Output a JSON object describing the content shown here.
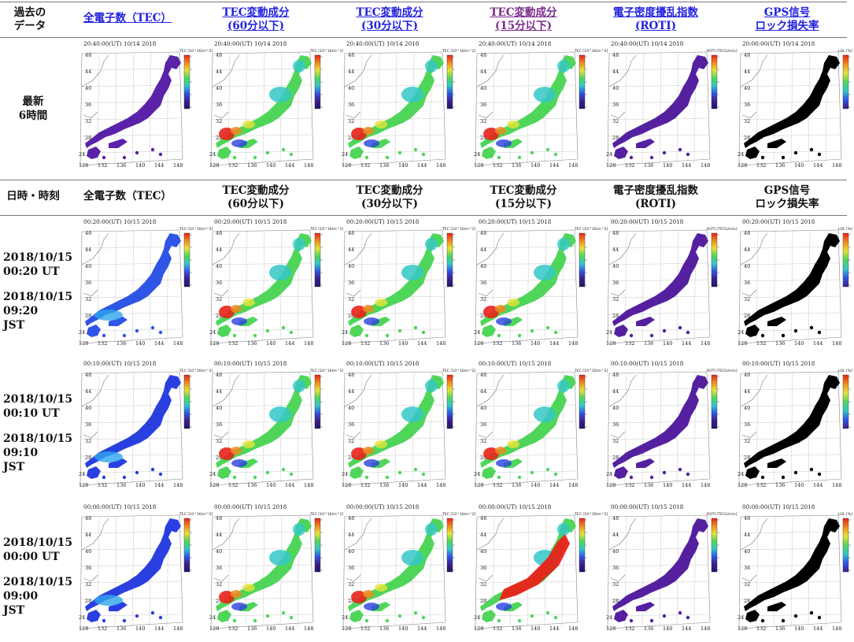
{
  "header_top": {
    "corner_line1": "過去の",
    "corner_line2": "データ",
    "columns": [
      {
        "line1": "全電子数（TEC）",
        "line2": "",
        "color": "#2222dd"
      },
      {
        "line1": "TEC変動成分",
        "line2": "(60分以下)",
        "color": "#2222dd"
      },
      {
        "line1": "TEC変動成分",
        "line2": "(30分以下)",
        "color": "#2222dd"
      },
      {
        "line1": "TEC変動成分",
        "line2": "(15分以下)",
        "color": "#7a2a8a"
      },
      {
        "line1": "電子密度擾乱指数",
        "line2": "(ROTI)",
        "color": "#2222dd"
      },
      {
        "line1": "GPS信号",
        "line2": "ロック損失率",
        "color": "#2222dd"
      }
    ]
  },
  "latest_row": {
    "label_line1": "最新",
    "label_line2": "6時間",
    "map_titles": [
      "20:40:00(UT)  10/14 2018",
      "20:40:00(UT)  10/14 2018",
      "20:40:00(UT)  10/14 2018",
      "20:40:00(UT)  10/14 2018",
      "20:40:00(UT)  10/14 2018",
      "20:00:00(UT)  10/14 2018"
    ]
  },
  "header_second": {
    "corner": "日時・時刻",
    "columns": [
      {
        "line1": "全電子数（TEC）",
        "line2": ""
      },
      {
        "line1": "TEC変動成分",
        "line2": "(60分以下)"
      },
      {
        "line1": "TEC変動成分",
        "line2": "(30分以下)"
      },
      {
        "line1": "TEC変動成分",
        "line2": "(15分以下)"
      },
      {
        "line1": "電子密度擾乱指数",
        "line2": "(ROTI)"
      },
      {
        "line1": "GPS信号",
        "line2": "ロック損失率"
      }
    ]
  },
  "rows": [
    {
      "date_ut": "2018/10/15",
      "time_ut": "00:20 UT",
      "date_jst": "2018/10/15",
      "time_jst": "09:20 JST",
      "map_title": "00:20:00(UT)  10/15 2018"
    },
    {
      "date_ut": "2018/10/15",
      "time_ut": "00:10 UT",
      "date_jst": "2018/10/15",
      "time_jst": "09:10 JST",
      "map_title": "00:10:00(UT)  10/15 2018"
    },
    {
      "date_ut": "2018/10/15",
      "time_ut": "00:00 UT",
      "date_jst": "2018/10/15",
      "time_jst": "09:00 JST",
      "map_title": "00:00:00(UT)  10/15 2018"
    }
  ],
  "map": {
    "lat_labels": [
      "48",
      "44",
      "40",
      "36",
      "32",
      "28",
      "24"
    ],
    "lon_labels": [
      "128",
      "132",
      "136",
      "140",
      "144",
      "148"
    ],
    "colorbar_labels": [
      "TEC [10^16/m^2]",
      "TEC [10^16/m^2]",
      "TEC [10^16/m^2]",
      "TEC [10^16/m^2]",
      "ROTI [TECU/min]",
      "LOL [%]"
    ],
    "palettes": {
      "tec_latest": "#5a22a8",
      "tec_blue": "#2f55e6",
      "tec_deep": "#2a3fe0",
      "green": "#4fd65a",
      "cyan": "#35c7c8",
      "roti": "#5520a0",
      "lol": "#000000",
      "red": "#e8221a",
      "orange": "#f08a1f",
      "yellow": "#e6e23a"
    }
  }
}
